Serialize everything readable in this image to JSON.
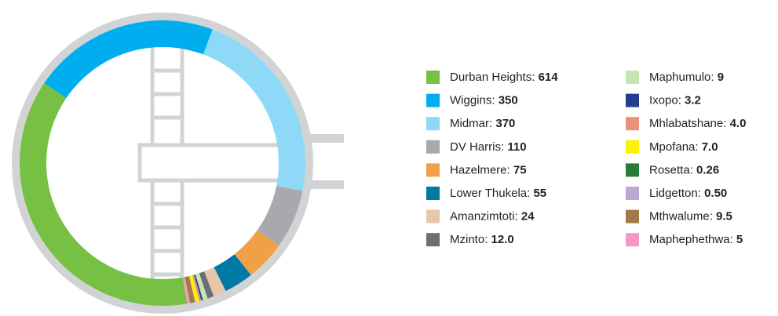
{
  "chart_data": {
    "type": "donut",
    "categories": [
      "Durban Heights",
      "Wiggins",
      "Midmar",
      "DV Harris",
      "Hazelmere",
      "Lower Thukela",
      "Amanzimtoti",
      "Mzinto",
      "Maphumulo",
      "Ixopo",
      "Mhlabatshane",
      "Mpofana",
      "Rosetta",
      "Lidgetton",
      "Mthwalume",
      "Maphephethwa"
    ],
    "values": [
      614,
      350,
      370,
      110,
      75,
      55,
      24,
      12.0,
      9,
      3.2,
      4.0,
      7.0,
      0.26,
      0.5,
      9.5,
      5
    ],
    "value_labels": [
      "614",
      "350",
      "370",
      "110",
      "75",
      "55",
      "24",
      "12.0",
      "9",
      "3.2",
      "4.0",
      "7.0",
      "0.26",
      "0.50",
      "9.5",
      "5"
    ],
    "colors": [
      "#76c043",
      "#00aeef",
      "#8ed8f8",
      "#a7a9ac",
      "#f0a045",
      "#0079a5",
      "#e6c7a8",
      "#6d6e71",
      "#c6e4b4",
      "#233e90",
      "#e8927c",
      "#fff200",
      "#2a7a3b",
      "#b9a8d4",
      "#a57946",
      "#f49ac1"
    ],
    "legend_separator": ": "
  }
}
